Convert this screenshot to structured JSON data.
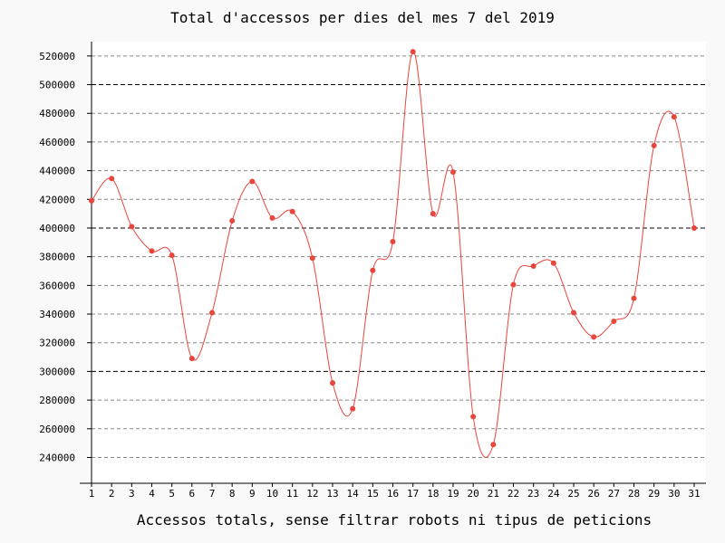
{
  "chart_data": {
    "type": "line",
    "title": "Total d'accessos per dies del mes 7 del 2019",
    "xlabel": "Accessos totals, sense filtrar robots ni tipus de peticions",
    "ylabel": "",
    "x": [
      1,
      2,
      3,
      4,
      5,
      6,
      7,
      8,
      9,
      10,
      11,
      12,
      13,
      14,
      15,
      16,
      17,
      18,
      19,
      20,
      21,
      22,
      23,
      24,
      25,
      26,
      27,
      28,
      29,
      30,
      31
    ],
    "series": [
      {
        "values": [
          419000,
          434500,
          401000,
          384000,
          381000,
          309000,
          341000,
          405000,
          432500,
          407000,
          411500,
          379000,
          292000,
          274000,
          370500,
          390500,
          523000,
          410000,
          439000,
          268500,
          249000,
          360500,
          373500,
          375500,
          341000,
          324000,
          335000,
          351000,
          457500,
          477500,
          400000
        ],
        "color": "#e8453c"
      }
    ],
    "ylim": [
      222000,
      530000
    ],
    "yticks": [
      240000,
      260000,
      280000,
      300000,
      320000,
      340000,
      360000,
      380000,
      400000,
      420000,
      440000,
      460000,
      480000,
      500000,
      520000
    ],
    "ytick_labels": [
      "240000",
      "260000",
      "280000",
      "300000",
      "320000",
      "340000",
      "360000",
      "380000",
      "400000",
      "420000",
      "440000",
      "460000",
      "480000",
      "500000",
      "520000"
    ],
    "xtick_labels": [
      "1",
      "2",
      "3",
      "4",
      "5",
      "6",
      "7",
      "8",
      "9",
      "10",
      "11",
      "12",
      "13",
      "14",
      "15",
      "16",
      "17",
      "18",
      "19",
      "20",
      "21",
      "22",
      "23",
      "24",
      "25",
      "26",
      "27",
      "28",
      "29",
      "30",
      "31"
    ],
    "major_gridlines": [
      300000,
      400000,
      500000
    ],
    "grid": true,
    "grid_style": "dashed horizontal",
    "smoothed": true
  }
}
